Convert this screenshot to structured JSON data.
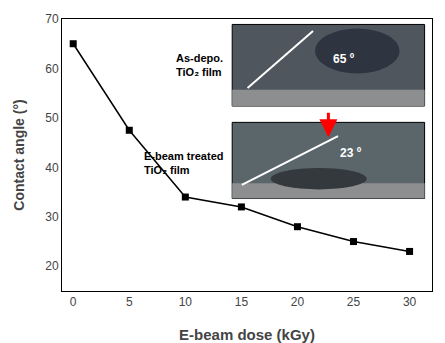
{
  "chart_data": {
    "type": "line",
    "x": [
      0,
      5,
      10,
      15,
      20,
      25,
      30
    ],
    "values": [
      65,
      47.5,
      34,
      32,
      28,
      25,
      23
    ],
    "xlabel": "E-beam dose (kGy)",
    "ylabel": "Contact angle (°)",
    "xlim": [
      -1,
      32
    ],
    "ylim": [
      15,
      70
    ],
    "xticks": [
      0,
      5,
      10,
      15,
      20,
      25,
      30
    ],
    "yticks": [
      20,
      30,
      40,
      50,
      60,
      70
    ],
    "color": "black",
    "marker": "square",
    "grid": false,
    "annotations": [
      "As-depo.\nTiO₂ film",
      "65 º",
      "E-beam treated\nTiO₂ film",
      "23 º"
    ]
  }
}
